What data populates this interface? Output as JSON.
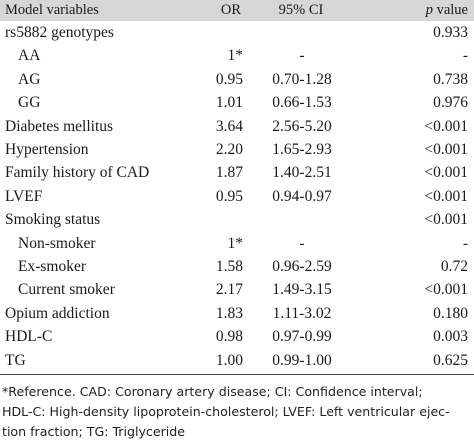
{
  "table": {
    "headers": {
      "variable": "Model variables",
      "or": "OR",
      "ci": "95% CI",
      "p_italic": "p",
      "p_rest": " value"
    },
    "rows": [
      {
        "name": "rs5882 genotypes",
        "or": "",
        "ci": "",
        "p": "0.933",
        "indent": false
      },
      {
        "name": "AA",
        "or": "1*",
        "ci": "-",
        "p": "-",
        "indent": true
      },
      {
        "name": "AG",
        "or": "0.95",
        "ci": "0.70-1.28",
        "p": "0.738",
        "indent": true
      },
      {
        "name": "GG",
        "or": "1.01",
        "ci": "0.66-1.53",
        "p": "0.976",
        "indent": true
      },
      {
        "name": "Diabetes mellitus",
        "or": "3.64",
        "ci": "2.56-5.20",
        "p": "<0.001",
        "indent": false
      },
      {
        "name": "Hypertension",
        "or": "2.20",
        "ci": "1.65-2.93",
        "p": "<0.001",
        "indent": false
      },
      {
        "name": "Family history of CAD",
        "or": "1.87",
        "ci": "1.40-2.51",
        "p": "<0.001",
        "indent": false
      },
      {
        "name": "LVEF",
        "or": "0.95",
        "ci": "0.94-0.97",
        "p": "<0.001",
        "indent": false
      },
      {
        "name": "Smoking status",
        "or": "",
        "ci": "",
        "p": "<0.001",
        "indent": false
      },
      {
        "name": "Non-smoker",
        "or": "1*",
        "ci": "-",
        "p": "-",
        "indent": true
      },
      {
        "name": "Ex-smoker",
        "or": "1.58",
        "ci": "0.96-2.59",
        "p": "0.72",
        "indent": true
      },
      {
        "name": "Current smoker",
        "or": "2.17",
        "ci": "1.49-3.15",
        "p": "<0.001",
        "indent": true
      },
      {
        "name": "Opium addiction",
        "or": "1.83",
        "ci": "1.11-3.02",
        "p": "0.180",
        "indent": false
      },
      {
        "name": "HDL-C",
        "or": "0.98",
        "ci": "0.97-0.99",
        "p": "0.003",
        "indent": false
      },
      {
        "name": "TG",
        "or": "1.00",
        "ci": "0.99-1.00",
        "p": "0.625",
        "indent": false
      }
    ]
  },
  "footnote": {
    "line1": "*Reference. CAD: Coronary artery disease; CI: Confidence interval;",
    "line2": "HDL-C: High-density lipoprotein-cholesterol; LVEF: Left ventricular ejec-",
    "line3": "tion fraction; TG: Triglyceride"
  }
}
